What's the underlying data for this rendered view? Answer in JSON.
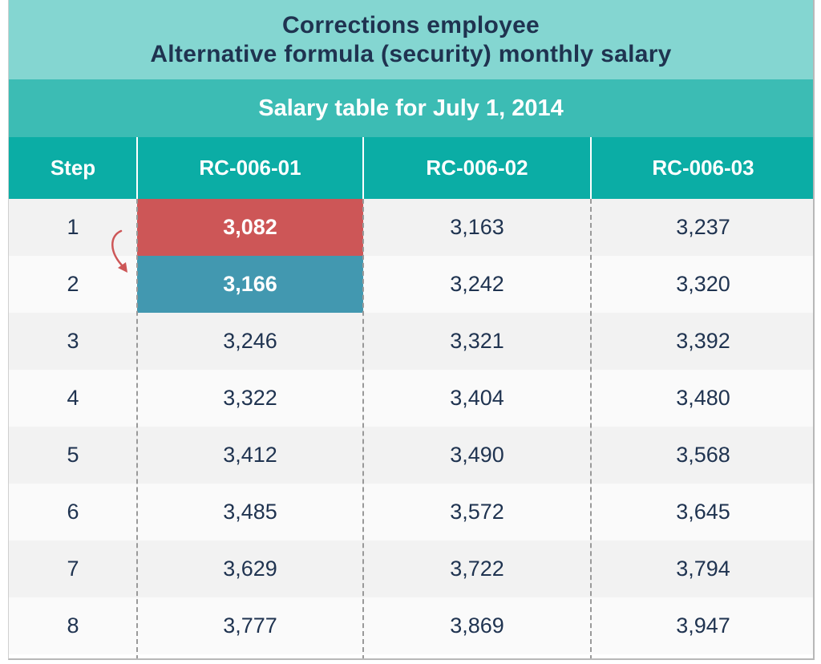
{
  "title": {
    "line1": "Corrections employee",
    "line2": "Alternative formula (security) monthly salary"
  },
  "subtitle": "Salary table for July 1, 2014",
  "table": {
    "headers": [
      "Step",
      "RC-006-01",
      "RC-006-02",
      "RC-006-03"
    ],
    "rows": [
      [
        "1",
        "3,082",
        "3,163",
        "3,237"
      ],
      [
        "2",
        "3,166",
        "3,242",
        "3,320"
      ],
      [
        "3",
        "3,246",
        "3,321",
        "3,392"
      ],
      [
        "4",
        "3,322",
        "3,404",
        "3,480"
      ],
      [
        "5",
        "3,412",
        "3,490",
        "3,568"
      ],
      [
        "6",
        "3,485",
        "3,572",
        "3,645"
      ],
      [
        "7",
        "3,629",
        "3,722",
        "3,794"
      ],
      [
        "8",
        "3,777",
        "3,869",
        "3,947"
      ]
    ],
    "highlights": {
      "from_cell_color": "#cd5657",
      "to_cell_color": "#4298b0",
      "arrow_color": "#cd5657"
    }
  },
  "colors": {
    "title_band": "#84d6d1",
    "subtitle_band": "#3cbcb4",
    "header_row": "#0bada5",
    "text_dark": "#1f3350"
  }
}
